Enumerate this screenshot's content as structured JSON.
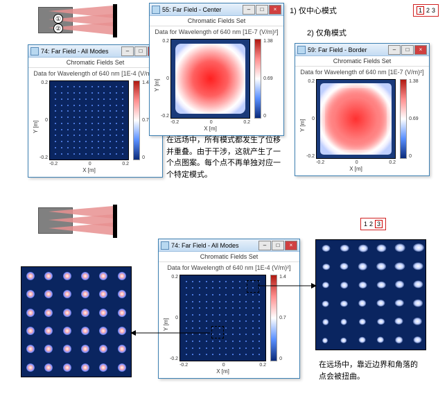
{
  "subtitle": "Chromatic Fields Set",
  "dataTitle": "Data for Wavelength of 640 nm  [1E-4 (V/m)²]",
  "dataTitleE7": "Data for Wavelength of 640 nm  [1E-7 (V/m)²]",
  "xlabel": "X [m]",
  "ylabel": "Y [m]",
  "ticks": [
    "-0.2",
    "0",
    "0.2"
  ],
  "cbar1": {
    "max": "1.4",
    "mid": "0.7",
    "min": "0"
  },
  "cbar2": {
    "max": "1.38",
    "mid": "0.69",
    "min": "0"
  },
  "cbarGrad": "linear-gradient(to top, #0a2a7a 0%, #5a90ff 25%, #ffffff 50%, #ff9090 75%, #b01810 100%)",
  "windows": {
    "allModes74": {
      "title": "74: Far Field - All Modes"
    },
    "center55": {
      "title": "55: Far Field - Center"
    },
    "border59": {
      "title": "59: Far Field - Border"
    }
  },
  "labels": {
    "item1": "1)   仅中心模式",
    "item2": "2)   仅角模式",
    "para1": "在远场中，所有模式都发生了位移并重叠。由于干涉，这就产生了一个点图案。每个点不再单独对应一个特定模式。",
    "para2": "在远场中，靠近边界和角落的点会被扭曲。"
  },
  "modeTop": {
    "a": "1",
    "b": "2",
    "c": "3"
  },
  "modeBot": {
    "a": "1",
    "b": "2",
    "c": "3"
  },
  "circ": {
    "one": "①",
    "two": "②"
  },
  "winBtnMin": "–",
  "winBtnMax": "□",
  "winBtnClose": "×"
}
